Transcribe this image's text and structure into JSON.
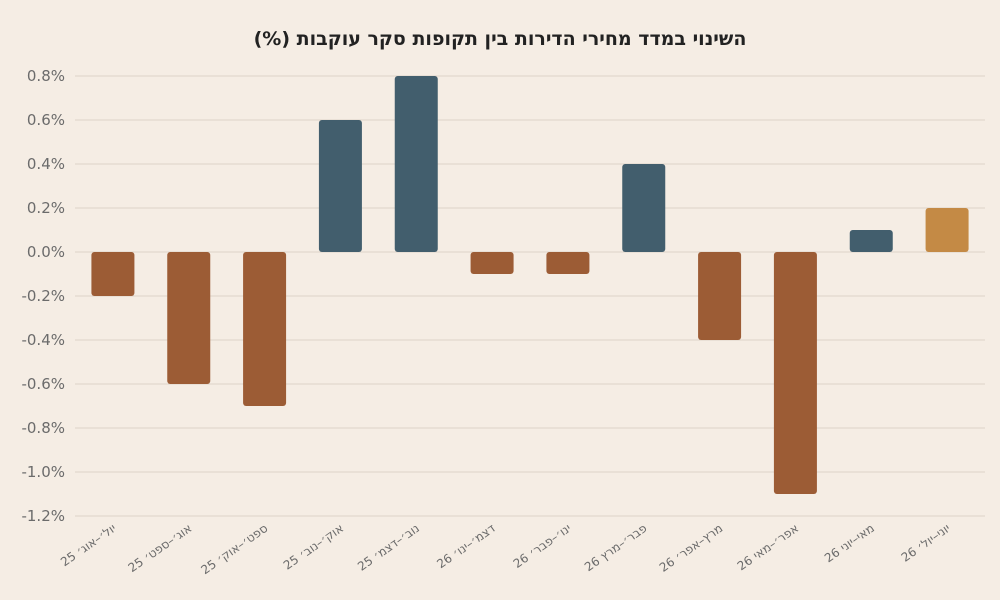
{
  "chart_data": {
    "type": "bar",
    "title": "השינוי במדד מחירי הדירות בין תקופות סקר עוקבות (%)",
    "xlabel": "",
    "ylabel": "",
    "categories": [
      "יול׳–אוג׳ 25",
      "אוג׳–ספט׳ 25",
      "ספט׳–אוק׳ 25",
      "אוק׳–נוב׳ 25",
      "נוב׳–דצמ׳ 25",
      "דצמ׳–ינו׳ 26",
      "ינו׳–פבר׳ 26",
      "פבר׳–מרץ 26",
      "מרץ–אפר׳ 26",
      "אפר׳–מאי 26",
      "מאי–יוני 26",
      "יוני–יול׳ 26"
    ],
    "values": [
      -0.2,
      -0.6,
      -0.7,
      0.6,
      0.8,
      -0.1,
      -0.1,
      0.4,
      -0.4,
      -1.1,
      0.1,
      0.2
    ],
    "ylim": [
      -1.2,
      0.8
    ],
    "yticks": [
      "0.8%",
      "0.6%",
      "0.4%",
      "0.2%",
      "0.0%",
      "-0.2%",
      "-0.4%",
      "-0.6%",
      "-0.8%",
      "-1.0%",
      "-1.2%"
    ],
    "grid": true,
    "colors": {
      "negative": "#9c5c35",
      "positive": "#425e6d",
      "latest": "#c48a45"
    }
  }
}
